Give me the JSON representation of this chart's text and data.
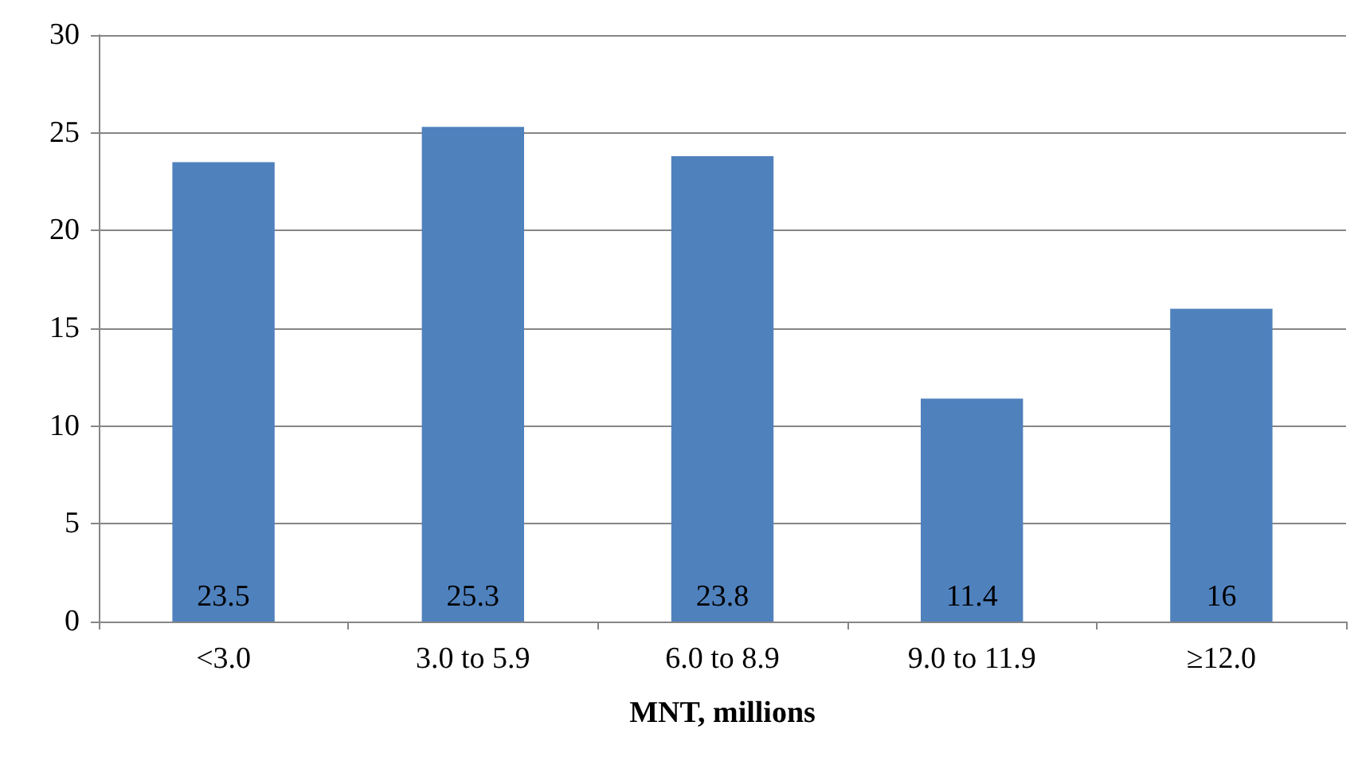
{
  "chart_data": {
    "type": "bar",
    "xlabel": "MNT, millions",
    "categories": [
      "<3.0",
      "3.0 to 5.9",
      "6.0 to 8.9",
      "9.0 to 11.9",
      "≥12.0"
    ],
    "values": [
      23.5,
      25.3,
      23.8,
      11.4,
      16
    ],
    "color": "#4f81bd",
    "ylim": [
      0,
      30
    ],
    "yticks": [
      0,
      5,
      10,
      15,
      20,
      25,
      30
    ],
    "grid": "y",
    "data_labels": true
  }
}
